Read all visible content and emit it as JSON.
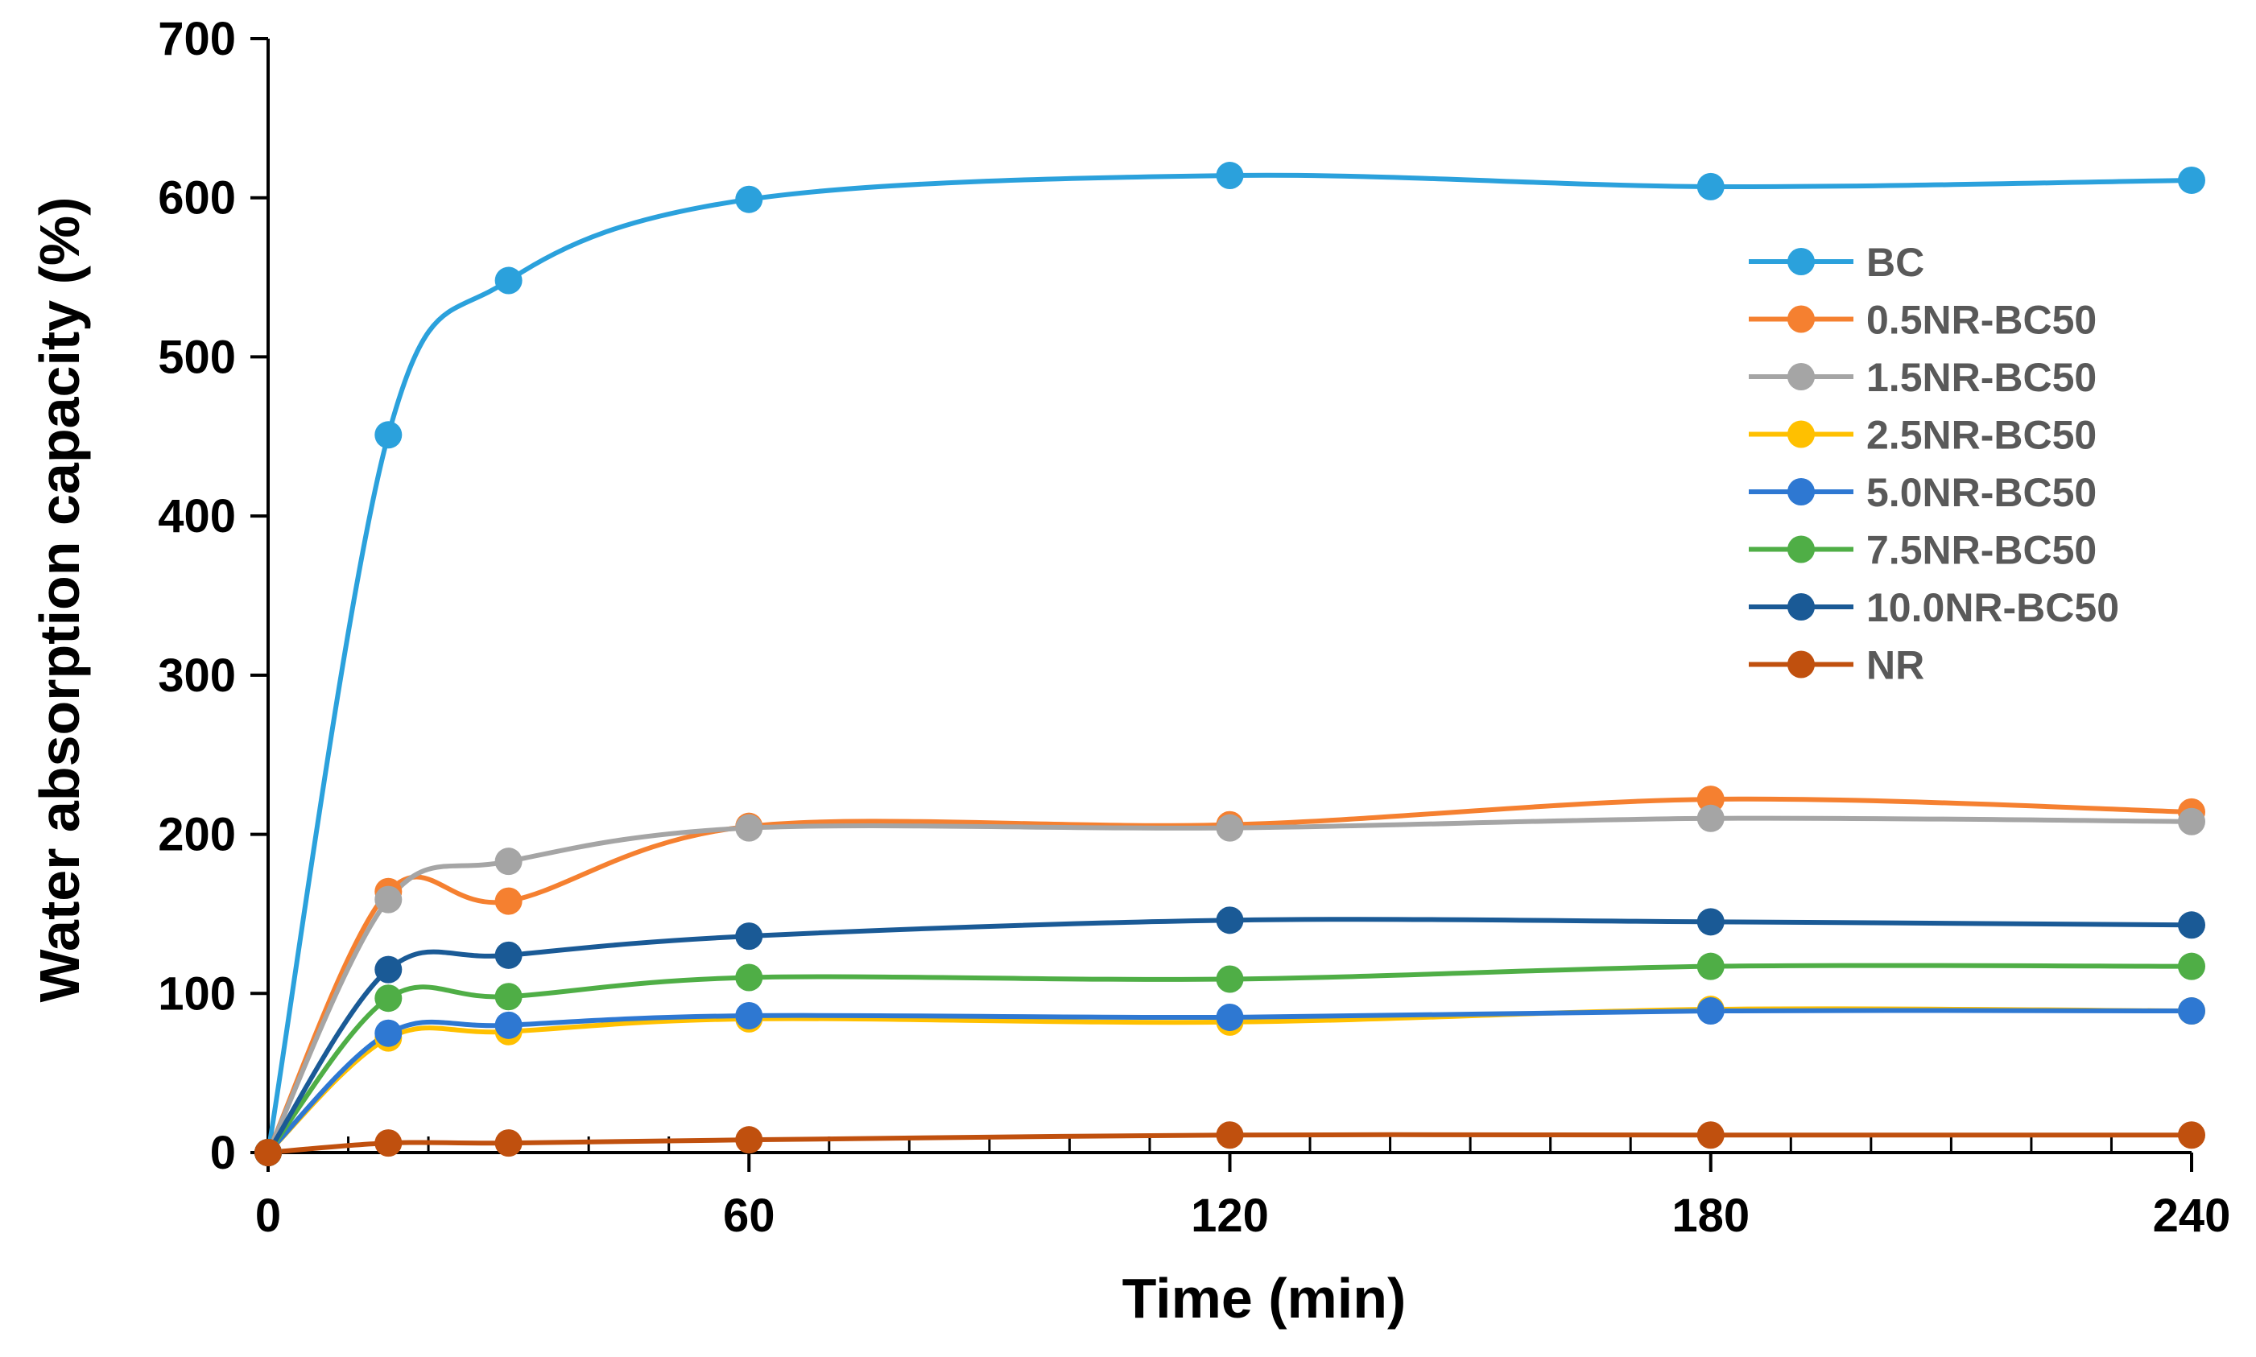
{
  "chart_data": {
    "type": "line",
    "title": "",
    "xlabel": "Time (min)",
    "ylabel": "Water absorption capacity (%)",
    "xlim": [
      0,
      240
    ],
    "ylim": [
      0,
      700
    ],
    "x_ticks": [
      0,
      60,
      120,
      180,
      240
    ],
    "y_ticks": [
      0,
      100,
      200,
      300,
      400,
      500,
      600,
      700
    ],
    "x_minor_step": 10,
    "grid": false,
    "legend_position": "right",
    "x": [
      0,
      15,
      30,
      60,
      120,
      180,
      240
    ],
    "series": [
      {
        "name": "BC",
        "color": "#2ba1dc",
        "values": [
          0,
          451,
          548,
          599,
          614,
          607,
          611
        ]
      },
      {
        "name": "0.5NR-BC50",
        "color": "#f58030",
        "values": [
          0,
          164,
          158,
          205,
          206,
          222,
          214
        ]
      },
      {
        "name": "1.5NR-BC50",
        "color": "#a5a5a5",
        "values": [
          0,
          159,
          183,
          204,
          204,
          210,
          208
        ]
      },
      {
        "name": "2.5NR-BC50",
        "color": "#ffc000",
        "values": [
          0,
          72,
          76,
          84,
          82,
          90,
          89
        ]
      },
      {
        "name": "5.0NR-BC50",
        "color": "#2e78d2",
        "values": [
          0,
          75,
          80,
          86,
          85,
          89,
          89
        ]
      },
      {
        "name": "7.5NR-BC50",
        "color": "#4fae46",
        "values": [
          0,
          97,
          98,
          110,
          109,
          117,
          117
        ]
      },
      {
        "name": "10.0NR-BC50",
        "color": "#1a5a96",
        "values": [
          0,
          115,
          124,
          136,
          146,
          145,
          143
        ]
      },
      {
        "name": "NR",
        "color": "#c0500e",
        "values": [
          0,
          6,
          6,
          8,
          11,
          11,
          11
        ]
      }
    ]
  }
}
